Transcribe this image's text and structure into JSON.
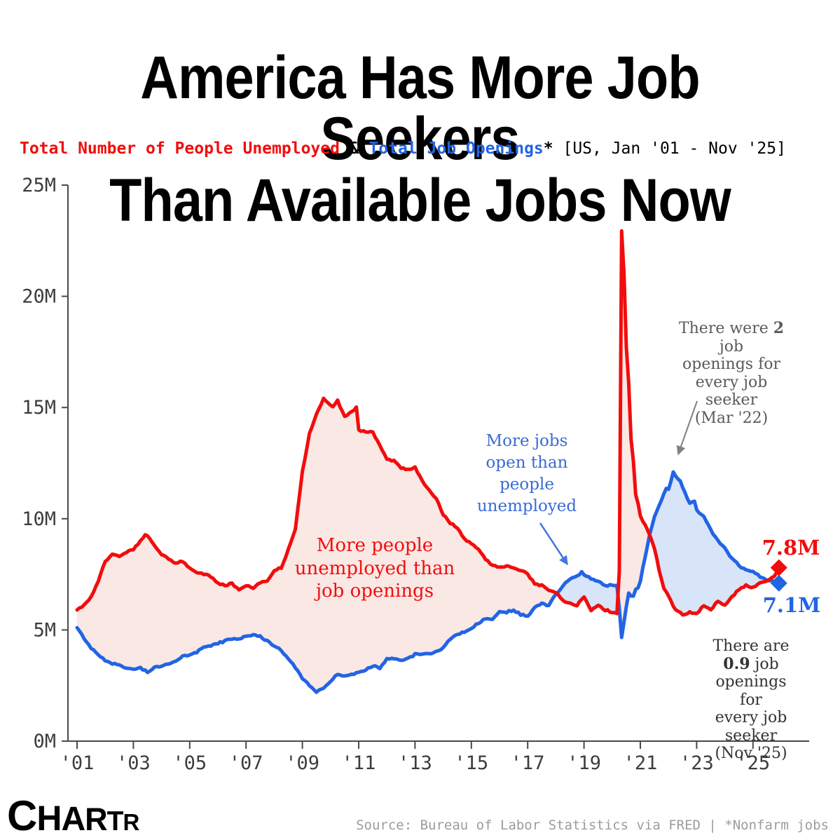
{
  "header": {
    "title_line1": "America Has More Job Seekers",
    "title_line2": "Than Available Jobs Now",
    "subtitle": {
      "series1": "Total Number of People Unemployed",
      "amp": " & ",
      "series2": "Total Job Openings",
      "asterisk": "*",
      "range": " [US, Jan '01 - Nov '25]"
    }
  },
  "colors": {
    "red": "#F20D0D",
    "blue": "#2264E4",
    "pink_fill": "#FAE8E5",
    "blue_fill": "#D8E4F7",
    "annotation_red": "#F20D0D",
    "annotation_blue": "#3A6BD5",
    "annotation_gray": "#5A5A5A",
    "annotation_dark": "#333333",
    "axis": "#4A4A4A",
    "tick_label": "#3D3D3D",
    "source": "#9C9C9C",
    "title": "#000000"
  },
  "annotations": {
    "more_unemployed": "More people\nunemployed than\njob openings",
    "more_open": "More jobs\nopen than\npeople\nunemployed",
    "mar22_prefix": "There were ",
    "mar22_bold": "2",
    "mar22_suffix": " job\nopenings for\nevery job seeker\n(Mar '22)",
    "nov25_prefix": "There are ",
    "nov25_bold": "0.9",
    "nov25_suffix": " job\nopenings for\nevery job seeker\n(Nov '25)",
    "end_red": "7.8M",
    "end_blue": "7.1M"
  },
  "footer": {
    "logo": "CHARTR",
    "source": "Source: Bureau of Labor Statistics via FRED | *Nonfarm jobs"
  },
  "chart_data": {
    "type": "line",
    "title": "Total Number of People Unemployed & Total Job Openings [US, Jan '01 - Nov '25]",
    "xlabel": "",
    "ylabel": "",
    "ylim": [
      0,
      25
    ],
    "xlim": [
      2001,
      2026.1
    ],
    "grid": false,
    "legend_position": "none",
    "wiggle": 0.08,
    "axis_color": "#4A4A4A",
    "tick_label_color": "#3D3D3D",
    "y_ticks": [
      {
        "v": 0,
        "label": "0M"
      },
      {
        "v": 5,
        "label": "5M"
      },
      {
        "v": 10,
        "label": "10M"
      },
      {
        "v": 15,
        "label": "15M"
      },
      {
        "v": 20,
        "label": "20M"
      },
      {
        "v": 25,
        "label": "25M"
      }
    ],
    "x_ticks": [
      {
        "v": 2001,
        "label": "'01"
      },
      {
        "v": 2003,
        "label": "'03"
      },
      {
        "v": 2005,
        "label": "'05"
      },
      {
        "v": 2007,
        "label": "'07"
      },
      {
        "v": 2009,
        "label": "'09"
      },
      {
        "v": 2011,
        "label": "'11"
      },
      {
        "v": 2013,
        "label": "'13"
      },
      {
        "v": 2015,
        "label": "'15"
      },
      {
        "v": 2017,
        "label": "'17"
      },
      {
        "v": 2019,
        "label": "'19"
      },
      {
        "v": 2021,
        "label": "'21"
      },
      {
        "v": 2023,
        "label": "'23"
      },
      {
        "v": 2025,
        "label": "'25"
      }
    ],
    "fills": {
      "unemployed_gt_openings": "#FAE8E5",
      "openings_gt_unemployed": "#D8E4F7"
    },
    "series": [
      {
        "name": "Total Number of People Unemployed (millions)",
        "color": "#F20D0D",
        "end_label": "7.8M",
        "points": [
          [
            2001.0,
            5.9
          ],
          [
            2001.25,
            6.1
          ],
          [
            2001.5,
            6.5
          ],
          [
            2001.75,
            7.2
          ],
          [
            2002.0,
            8.1
          ],
          [
            2002.25,
            8.4
          ],
          [
            2002.5,
            8.3
          ],
          [
            2002.75,
            8.5
          ],
          [
            2003.0,
            8.6
          ],
          [
            2003.25,
            9.0
          ],
          [
            2003.42,
            9.3
          ],
          [
            2003.58,
            9.1
          ],
          [
            2003.75,
            8.8
          ],
          [
            2004.0,
            8.4
          ],
          [
            2004.25,
            8.2
          ],
          [
            2004.5,
            8.0
          ],
          [
            2004.75,
            8.1
          ],
          [
            2005.0,
            7.8
          ],
          [
            2005.25,
            7.6
          ],
          [
            2005.5,
            7.5
          ],
          [
            2005.75,
            7.4
          ],
          [
            2006.0,
            7.1
          ],
          [
            2006.25,
            7.0
          ],
          [
            2006.5,
            7.1
          ],
          [
            2006.75,
            6.8
          ],
          [
            2007.0,
            7.0
          ],
          [
            2007.25,
            6.9
          ],
          [
            2007.5,
            7.1
          ],
          [
            2007.75,
            7.2
          ],
          [
            2008.0,
            7.7
          ],
          [
            2008.25,
            7.8
          ],
          [
            2008.5,
            8.6
          ],
          [
            2008.75,
            9.5
          ],
          [
            2009.0,
            12.1
          ],
          [
            2009.25,
            13.8
          ],
          [
            2009.5,
            14.7
          ],
          [
            2009.75,
            15.4
          ],
          [
            2009.92,
            15.2
          ],
          [
            2010.08,
            15.0
          ],
          [
            2010.25,
            15.3
          ],
          [
            2010.5,
            14.6
          ],
          [
            2010.75,
            14.8
          ],
          [
            2010.92,
            15.0
          ],
          [
            2011.0,
            14.0
          ],
          [
            2011.25,
            13.9
          ],
          [
            2011.5,
            13.9
          ],
          [
            2011.75,
            13.3
          ],
          [
            2012.0,
            12.7
          ],
          [
            2012.25,
            12.6
          ],
          [
            2012.5,
            12.3
          ],
          [
            2012.75,
            12.2
          ],
          [
            2013.0,
            12.3
          ],
          [
            2013.25,
            11.7
          ],
          [
            2013.5,
            11.3
          ],
          [
            2013.75,
            10.9
          ],
          [
            2014.0,
            10.2
          ],
          [
            2014.25,
            9.8
          ],
          [
            2014.5,
            9.6
          ],
          [
            2014.75,
            9.1
          ],
          [
            2015.0,
            8.9
          ],
          [
            2015.25,
            8.6
          ],
          [
            2015.5,
            8.2
          ],
          [
            2015.75,
            7.9
          ],
          [
            2016.0,
            7.8
          ],
          [
            2016.25,
            7.9
          ],
          [
            2016.5,
            7.8
          ],
          [
            2016.75,
            7.7
          ],
          [
            2017.0,
            7.5
          ],
          [
            2017.25,
            7.1
          ],
          [
            2017.5,
            7.0
          ],
          [
            2017.75,
            6.8
          ],
          [
            2018.0,
            6.7
          ],
          [
            2018.25,
            6.3
          ],
          [
            2018.5,
            6.2
          ],
          [
            2018.75,
            6.1
          ],
          [
            2019.0,
            6.5
          ],
          [
            2019.25,
            5.9
          ],
          [
            2019.5,
            6.1
          ],
          [
            2019.75,
            5.9
          ],
          [
            2020.0,
            5.8
          ],
          [
            2020.17,
            5.7
          ],
          [
            2020.25,
            7.1
          ],
          [
            2020.33,
            23.1
          ],
          [
            2020.42,
            21.0
          ],
          [
            2020.5,
            17.8
          ],
          [
            2020.58,
            16.3
          ],
          [
            2020.67,
            13.6
          ],
          [
            2020.75,
            12.6
          ],
          [
            2020.83,
            11.1
          ],
          [
            2020.92,
            10.7
          ],
          [
            2021.0,
            10.1
          ],
          [
            2021.17,
            9.7
          ],
          [
            2021.33,
            9.3
          ],
          [
            2021.5,
            8.7
          ],
          [
            2021.67,
            7.7
          ],
          [
            2021.83,
            6.9
          ],
          [
            2022.0,
            6.5
          ],
          [
            2022.25,
            5.9
          ],
          [
            2022.5,
            5.7
          ],
          [
            2022.75,
            5.8
          ],
          [
            2023.0,
            5.7
          ],
          [
            2023.25,
            6.1
          ],
          [
            2023.5,
            5.9
          ],
          [
            2023.75,
            6.3
          ],
          [
            2024.0,
            6.1
          ],
          [
            2024.25,
            6.5
          ],
          [
            2024.5,
            6.8
          ],
          [
            2024.75,
            7.0
          ],
          [
            2025.0,
            6.9
          ],
          [
            2025.25,
            7.1
          ],
          [
            2025.5,
            7.2
          ],
          [
            2025.75,
            7.4
          ],
          [
            2025.92,
            7.8
          ]
        ]
      },
      {
        "name": "Total Job Openings, nonfarm (millions)",
        "color": "#2264E4",
        "end_label": "7.1M",
        "points": [
          [
            2001.0,
            5.1
          ],
          [
            2001.25,
            4.6
          ],
          [
            2001.5,
            4.2
          ],
          [
            2001.75,
            3.9
          ],
          [
            2002.0,
            3.6
          ],
          [
            2002.25,
            3.5
          ],
          [
            2002.5,
            3.4
          ],
          [
            2002.75,
            3.3
          ],
          [
            2003.0,
            3.2
          ],
          [
            2003.25,
            3.3
          ],
          [
            2003.5,
            3.1
          ],
          [
            2003.75,
            3.3
          ],
          [
            2004.0,
            3.4
          ],
          [
            2004.25,
            3.5
          ],
          [
            2004.5,
            3.6
          ],
          [
            2004.75,
            3.8
          ],
          [
            2005.0,
            3.9
          ],
          [
            2005.25,
            4.0
          ],
          [
            2005.5,
            4.2
          ],
          [
            2005.75,
            4.3
          ],
          [
            2006.0,
            4.4
          ],
          [
            2006.25,
            4.5
          ],
          [
            2006.5,
            4.6
          ],
          [
            2006.75,
            4.6
          ],
          [
            2007.0,
            4.7
          ],
          [
            2007.25,
            4.8
          ],
          [
            2007.5,
            4.7
          ],
          [
            2007.75,
            4.5
          ],
          [
            2008.0,
            4.3
          ],
          [
            2008.25,
            4.1
          ],
          [
            2008.5,
            3.7
          ],
          [
            2008.75,
            3.3
          ],
          [
            2009.0,
            2.8
          ],
          [
            2009.25,
            2.5
          ],
          [
            2009.5,
            2.2
          ],
          [
            2009.75,
            2.4
          ],
          [
            2010.0,
            2.7
          ],
          [
            2010.25,
            3.0
          ],
          [
            2010.5,
            2.9
          ],
          [
            2010.75,
            3.0
          ],
          [
            2011.0,
            3.1
          ],
          [
            2011.25,
            3.2
          ],
          [
            2011.5,
            3.4
          ],
          [
            2011.75,
            3.3
          ],
          [
            2012.0,
            3.7
          ],
          [
            2012.25,
            3.7
          ],
          [
            2012.5,
            3.6
          ],
          [
            2012.75,
            3.7
          ],
          [
            2013.0,
            3.9
          ],
          [
            2013.25,
            3.9
          ],
          [
            2013.5,
            3.9
          ],
          [
            2013.75,
            4.0
          ],
          [
            2014.0,
            4.2
          ],
          [
            2014.25,
            4.6
          ],
          [
            2014.5,
            4.8
          ],
          [
            2014.75,
            4.9
          ],
          [
            2015.0,
            5.1
          ],
          [
            2015.25,
            5.3
          ],
          [
            2015.5,
            5.5
          ],
          [
            2015.75,
            5.5
          ],
          [
            2016.0,
            5.8
          ],
          [
            2016.25,
            5.8
          ],
          [
            2016.5,
            5.9
          ],
          [
            2016.75,
            5.7
          ],
          [
            2017.0,
            5.6
          ],
          [
            2017.25,
            6.0
          ],
          [
            2017.5,
            6.2
          ],
          [
            2017.75,
            6.1
          ],
          [
            2018.0,
            6.6
          ],
          [
            2018.25,
            7.0
          ],
          [
            2018.5,
            7.3
          ],
          [
            2018.75,
            7.4
          ],
          [
            2018.92,
            7.6
          ],
          [
            2019.0,
            7.5
          ],
          [
            2019.25,
            7.3
          ],
          [
            2019.5,
            7.2
          ],
          [
            2019.75,
            7.0
          ],
          [
            2020.0,
            7.0
          ],
          [
            2020.17,
            7.0
          ],
          [
            2020.25,
            6.0
          ],
          [
            2020.33,
            4.6
          ],
          [
            2020.42,
            5.4
          ],
          [
            2020.5,
            6.0
          ],
          [
            2020.58,
            6.7
          ],
          [
            2020.67,
            6.5
          ],
          [
            2020.75,
            6.5
          ],
          [
            2020.83,
            6.8
          ],
          [
            2020.92,
            6.9
          ],
          [
            2021.0,
            7.2
          ],
          [
            2021.17,
            8.3
          ],
          [
            2021.33,
            9.3
          ],
          [
            2021.5,
            10.1
          ],
          [
            2021.67,
            10.6
          ],
          [
            2021.83,
            11.1
          ],
          [
            2021.92,
            11.4
          ],
          [
            2022.0,
            11.3
          ],
          [
            2022.17,
            12.1
          ],
          [
            2022.25,
            11.9
          ],
          [
            2022.42,
            11.7
          ],
          [
            2022.58,
            11.2
          ],
          [
            2022.75,
            10.7
          ],
          [
            2022.92,
            10.8
          ],
          [
            2023.0,
            10.4
          ],
          [
            2023.25,
            10.1
          ],
          [
            2023.5,
            9.5
          ],
          [
            2023.75,
            9.0
          ],
          [
            2024.0,
            8.7
          ],
          [
            2024.25,
            8.2
          ],
          [
            2024.5,
            7.9
          ],
          [
            2024.75,
            7.7
          ],
          [
            2025.0,
            7.6
          ],
          [
            2025.25,
            7.4
          ],
          [
            2025.5,
            7.2
          ],
          [
            2025.75,
            7.2
          ],
          [
            2025.92,
            7.1
          ]
        ]
      }
    ],
    "annotation_arrows": [
      {
        "name": "blue-region-arrow",
        "from": [
          771,
          746
        ],
        "to": [
          810,
          805
        ],
        "color": "#4477E0"
      },
      {
        "name": "mar22-arrow",
        "from": [
          995,
          572
        ],
        "to": [
          968,
          648
        ],
        "color": "#808080"
      }
    ]
  }
}
